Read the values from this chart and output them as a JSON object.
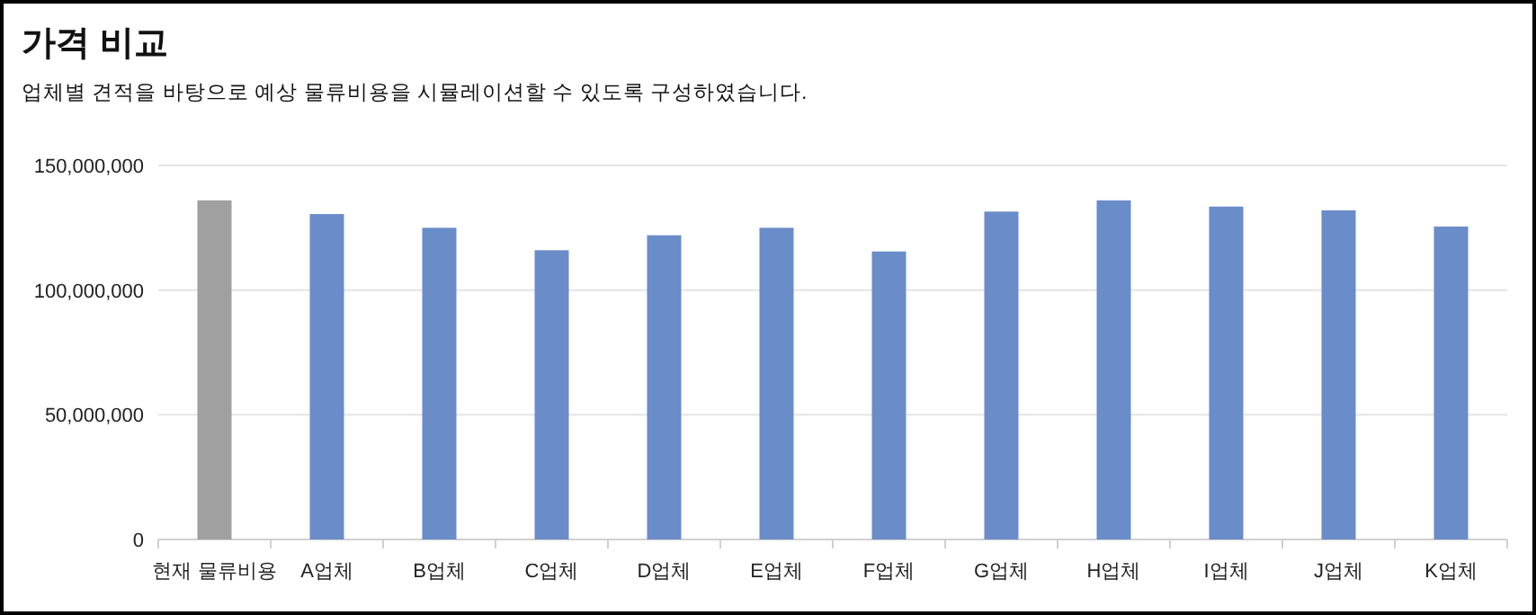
{
  "chart_data": {
    "type": "bar",
    "title": "가격 비교",
    "subtitle": "업체별 견적을 바탕으로 예상 물류비용을 시뮬레이션할 수 있도록 구성하였습니다.",
    "categories": [
      "현재 물류비용",
      "A업체",
      "B업체",
      "C업체",
      "D업체",
      "E업체",
      "F업체",
      "G업체",
      "H업체",
      "I업체",
      "J업체",
      "K업체"
    ],
    "values": [
      136000000,
      130500000,
      125000000,
      116000000,
      122000000,
      125000000,
      115500000,
      131500000,
      136000000,
      133500000,
      132000000,
      125500000
    ],
    "colors": [
      "#a0a0a0",
      "#6a8cc8",
      "#6a8cc8",
      "#6a8cc8",
      "#6a8cc8",
      "#6a8cc8",
      "#6a8cc8",
      "#6a8cc8",
      "#6a8cc8",
      "#6a8cc8",
      "#6a8cc8",
      "#6a8cc8"
    ],
    "ylim": [
      0,
      150000000
    ],
    "yticks": [
      0,
      {
        "value": 50000000,
        "label": "50,000,000"
      },
      {
        "value": 100000000,
        "label": "100,000,000"
      },
      {
        "value": 150000000,
        "label": "150,000,000"
      }
    ],
    "grid": "y"
  }
}
